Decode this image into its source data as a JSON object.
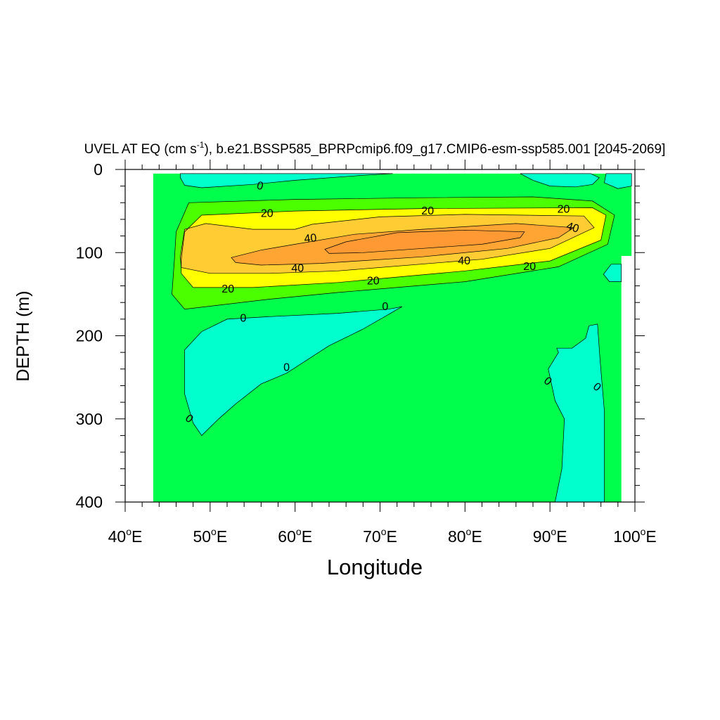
{
  "chart_data": {
    "type": "contour",
    "title": {
      "prefix": "UVEL AT EQ (cm s",
      "superscript": "-1",
      "suffix": "), b.e21.BSSP585_BPRPcmip6.f09_g17.CMIP6-esm-ssp585.001 [2045-2069]"
    },
    "xlabel": "Longitude",
    "ylabel": "DEPTH (m)",
    "xlim": [
      40,
      100
    ],
    "ylim": [
      0,
      400
    ],
    "y_inverted": true,
    "x_ticks": [
      {
        "value": 40,
        "num": "40",
        "deg": "o",
        "dir": "E"
      },
      {
        "value": 50,
        "num": "50",
        "deg": "o",
        "dir": "E"
      },
      {
        "value": 60,
        "num": "60",
        "deg": "o",
        "dir": "E"
      },
      {
        "value": 70,
        "num": "70",
        "deg": "o",
        "dir": "E"
      },
      {
        "value": 80,
        "num": "80",
        "deg": "o",
        "dir": "E"
      },
      {
        "value": 90,
        "num": "90",
        "deg": "o",
        "dir": "E"
      },
      {
        "value": 100,
        "num": "100",
        "deg": "o",
        "dir": "E"
      }
    ],
    "y_ticks": [
      {
        "value": 0,
        "label": "0"
      },
      {
        "value": 100,
        "label": "100"
      },
      {
        "value": 200,
        "label": "200"
      },
      {
        "value": 300,
        "label": "300"
      },
      {
        "value": 400,
        "label": "400"
      }
    ],
    "fill_colors": {
      "below_zero": "#00ffcc",
      "zero_to_20": "#00ff4c",
      "band_20": "#4cff00",
      "band_30": "#ffff00",
      "band_40": "#ffcc33",
      "band_50": "#ffa533",
      "band_60": "#ff9933",
      "missing": "#ffffff"
    },
    "regions": [
      {
        "name": "ocean-domain",
        "level": "zero_to_20",
        "points": [
          [
            43.3,
            5
          ],
          [
            99.6,
            5
          ],
          [
            99.6,
            104
          ],
          [
            98.4,
            104
          ],
          [
            98.4,
            400
          ],
          [
            43.3,
            400
          ]
        ]
      },
      {
        "name": "negative-surface-west",
        "level": "below_zero",
        "points": [
          [
            46.5,
            5
          ],
          [
            71.5,
            5
          ],
          [
            68,
            7
          ],
          [
            60,
            13
          ],
          [
            55,
            18
          ],
          [
            49,
            22
          ],
          [
            47,
            19
          ],
          [
            46.5,
            10
          ]
        ]
      },
      {
        "name": "negative-surface-east",
        "level": "below_zero",
        "points": [
          [
            86.5,
            5
          ],
          [
            94.8,
            5
          ],
          [
            95.8,
            10
          ],
          [
            95,
            18
          ],
          [
            93,
            21
          ],
          [
            90,
            20
          ],
          [
            88,
            13
          ]
        ]
      },
      {
        "name": "negative-surface-corner",
        "level": "below_zero",
        "points": [
          [
            96.6,
            5
          ],
          [
            99.6,
            5
          ],
          [
            99.6,
            20
          ],
          [
            98,
            23
          ],
          [
            96.4,
            16
          ]
        ]
      },
      {
        "name": "negative-subsurface-west",
        "level": "below_zero",
        "points": [
          [
            72.6,
            165
          ],
          [
            71,
            168
          ],
          [
            65,
            173
          ],
          [
            57,
            177
          ],
          [
            52,
            180
          ],
          [
            49,
            195
          ],
          [
            47,
            217
          ],
          [
            47,
            270
          ],
          [
            48,
            305
          ],
          [
            49,
            320
          ],
          [
            51,
            300
          ],
          [
            53,
            282
          ],
          [
            56,
            258
          ],
          [
            59,
            245
          ],
          [
            64,
            212
          ],
          [
            68,
            192
          ],
          [
            71.4,
            172
          ]
        ]
      },
      {
        "name": "negative-mid-east",
        "level": "below_zero",
        "points": [
          [
            97.2,
            114
          ],
          [
            98.4,
            114
          ],
          [
            98.4,
            135
          ],
          [
            97,
            135
          ],
          [
            96.3,
            126
          ]
        ]
      },
      {
        "name": "negative-deep-east",
        "level": "below_zero",
        "points": [
          [
            94.6,
            188
          ],
          [
            95.6,
            186
          ],
          [
            95.9,
            230
          ],
          [
            96.4,
            290
          ],
          [
            96.4,
            400
          ],
          [
            90.6,
            400
          ],
          [
            91.4,
            360
          ],
          [
            91.7,
            300
          ],
          [
            90.6,
            278
          ],
          [
            89.8,
            240
          ],
          [
            91,
            220
          ],
          [
            90.8,
            215
          ],
          [
            92.6,
            215
          ],
          [
            94.2,
            203
          ]
        ]
      },
      {
        "name": "positive-20",
        "level": "band_20",
        "points": [
          [
            45.8,
            108
          ],
          [
            46,
            75
          ],
          [
            47.5,
            40
          ],
          [
            60,
            36
          ],
          [
            75,
            34
          ],
          [
            88,
            33
          ],
          [
            95,
            38
          ],
          [
            97.6,
            55
          ],
          [
            96.8,
            90
          ],
          [
            91,
            117
          ],
          [
            80,
            135
          ],
          [
            65,
            148
          ],
          [
            57,
            156
          ],
          [
            47,
            168
          ],
          [
            45.5,
            150
          ]
        ]
      },
      {
        "name": "positive-30",
        "level": "band_30",
        "points": [
          [
            46.6,
            108
          ],
          [
            47,
            75
          ],
          [
            49,
            55
          ],
          [
            60,
            50
          ],
          [
            75,
            47
          ],
          [
            95,
            46
          ],
          [
            96.6,
            55
          ],
          [
            96,
            85
          ],
          [
            90,
            110
          ],
          [
            80,
            122
          ],
          [
            65,
            136
          ],
          [
            55,
            142
          ],
          [
            48,
            142
          ],
          [
            46.6,
            125
          ]
        ]
      },
      {
        "name": "positive-40",
        "level": "band_40",
        "points": [
          [
            46.5,
            105
          ],
          [
            47,
            72
          ],
          [
            49.5,
            65
          ],
          [
            55,
            72
          ],
          [
            60,
            72
          ],
          [
            62,
            66
          ],
          [
            70,
            57
          ],
          [
            80,
            54
          ],
          [
            94,
            56
          ],
          [
            95.2,
            70
          ],
          [
            90,
            95
          ],
          [
            82,
            108
          ],
          [
            65,
            122
          ],
          [
            57,
            125
          ],
          [
            50,
            125
          ],
          [
            46.6,
            118
          ]
        ]
      },
      {
        "name": "positive-50",
        "level": "band_50",
        "points": [
          [
            52.5,
            106
          ],
          [
            56,
            97
          ],
          [
            60,
            90
          ],
          [
            67,
            78
          ],
          [
            75,
            72
          ],
          [
            86,
            65
          ],
          [
            92.8,
            70
          ],
          [
            91,
            82
          ],
          [
            85,
            95
          ],
          [
            75,
            105
          ],
          [
            63,
            113
          ],
          [
            56,
            115
          ],
          [
            53,
            112
          ]
        ]
      },
      {
        "name": "positive-60",
        "level": "band_60",
        "points": [
          [
            63.5,
            96
          ],
          [
            66,
            87
          ],
          [
            72,
            76
          ],
          [
            80,
            73
          ],
          [
            87,
            75
          ],
          [
            86.5,
            82
          ],
          [
            82,
            90
          ],
          [
            75,
            95
          ],
          [
            68,
            100
          ],
          [
            64,
            101
          ]
        ]
      }
    ],
    "contour_labels": [
      {
        "text": "0",
        "x": 55.9,
        "y": 19,
        "rotate": 15
      },
      {
        "text": "20",
        "x": 56.7,
        "y": 52,
        "rotate": 0
      },
      {
        "text": "20",
        "x": 75.6,
        "y": 49,
        "rotate": 0
      },
      {
        "text": "20",
        "x": 91.6,
        "y": 47,
        "rotate": 0
      },
      {
        "text": "40",
        "x": 92.7,
        "y": 69,
        "rotate": 18
      },
      {
        "text": "40",
        "x": 61.8,
        "y": 82,
        "rotate": -6
      },
      {
        "text": "40",
        "x": 60.3,
        "y": 118,
        "rotate": 0
      },
      {
        "text": "40",
        "x": 79.9,
        "y": 109,
        "rotate": 0
      },
      {
        "text": "20",
        "x": 87.6,
        "y": 116,
        "rotate": 0
      },
      {
        "text": "20",
        "x": 69.2,
        "y": 133,
        "rotate": 0
      },
      {
        "text": "20",
        "x": 52.1,
        "y": 143,
        "rotate": 0
      },
      {
        "text": "0",
        "x": 70.6,
        "y": 164,
        "rotate": 0
      },
      {
        "text": "0",
        "x": 53.9,
        "y": 178,
        "rotate": 0
      },
      {
        "text": "0",
        "x": 59,
        "y": 237,
        "rotate": 0
      },
      {
        "text": "0",
        "x": 47.6,
        "y": 299,
        "rotate": 40
      },
      {
        "text": "0",
        "x": 89.8,
        "y": 254,
        "rotate": 40
      },
      {
        "text": "0",
        "x": 95.6,
        "y": 261,
        "rotate": 40
      }
    ]
  }
}
